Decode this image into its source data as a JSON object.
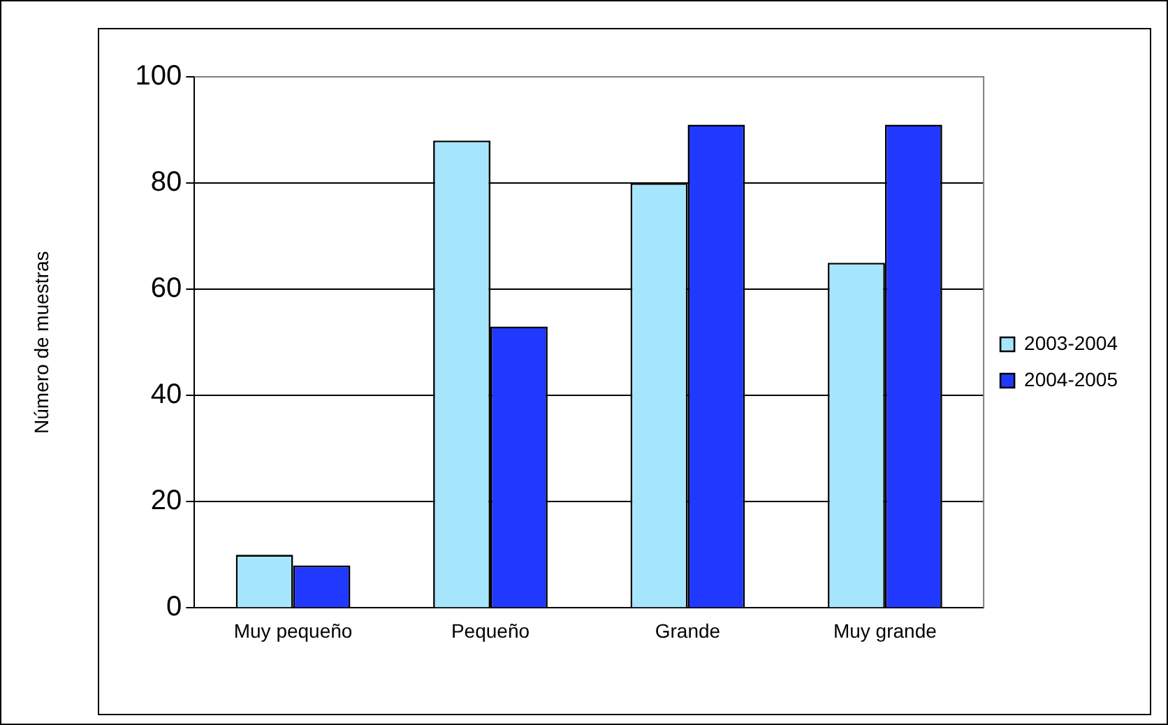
{
  "chart_data": {
    "type": "bar",
    "ylabel": "Número de muestras",
    "categories": [
      "Muy pequeño",
      "Pequeño",
      "Grande",
      "Muy grande"
    ],
    "series": [
      {
        "name": "2003-2004",
        "color": "#a6e6fc",
        "values": [
          10,
          88,
          80,
          65
        ]
      },
      {
        "name": "2004-2005",
        "color": "#2139ff",
        "values": [
          8,
          53,
          91,
          91
        ]
      }
    ],
    "ylim": [
      0,
      100
    ],
    "yticks": [
      0,
      20,
      40,
      60,
      80,
      100
    ],
    "grid": "y",
    "legend": "right"
  }
}
